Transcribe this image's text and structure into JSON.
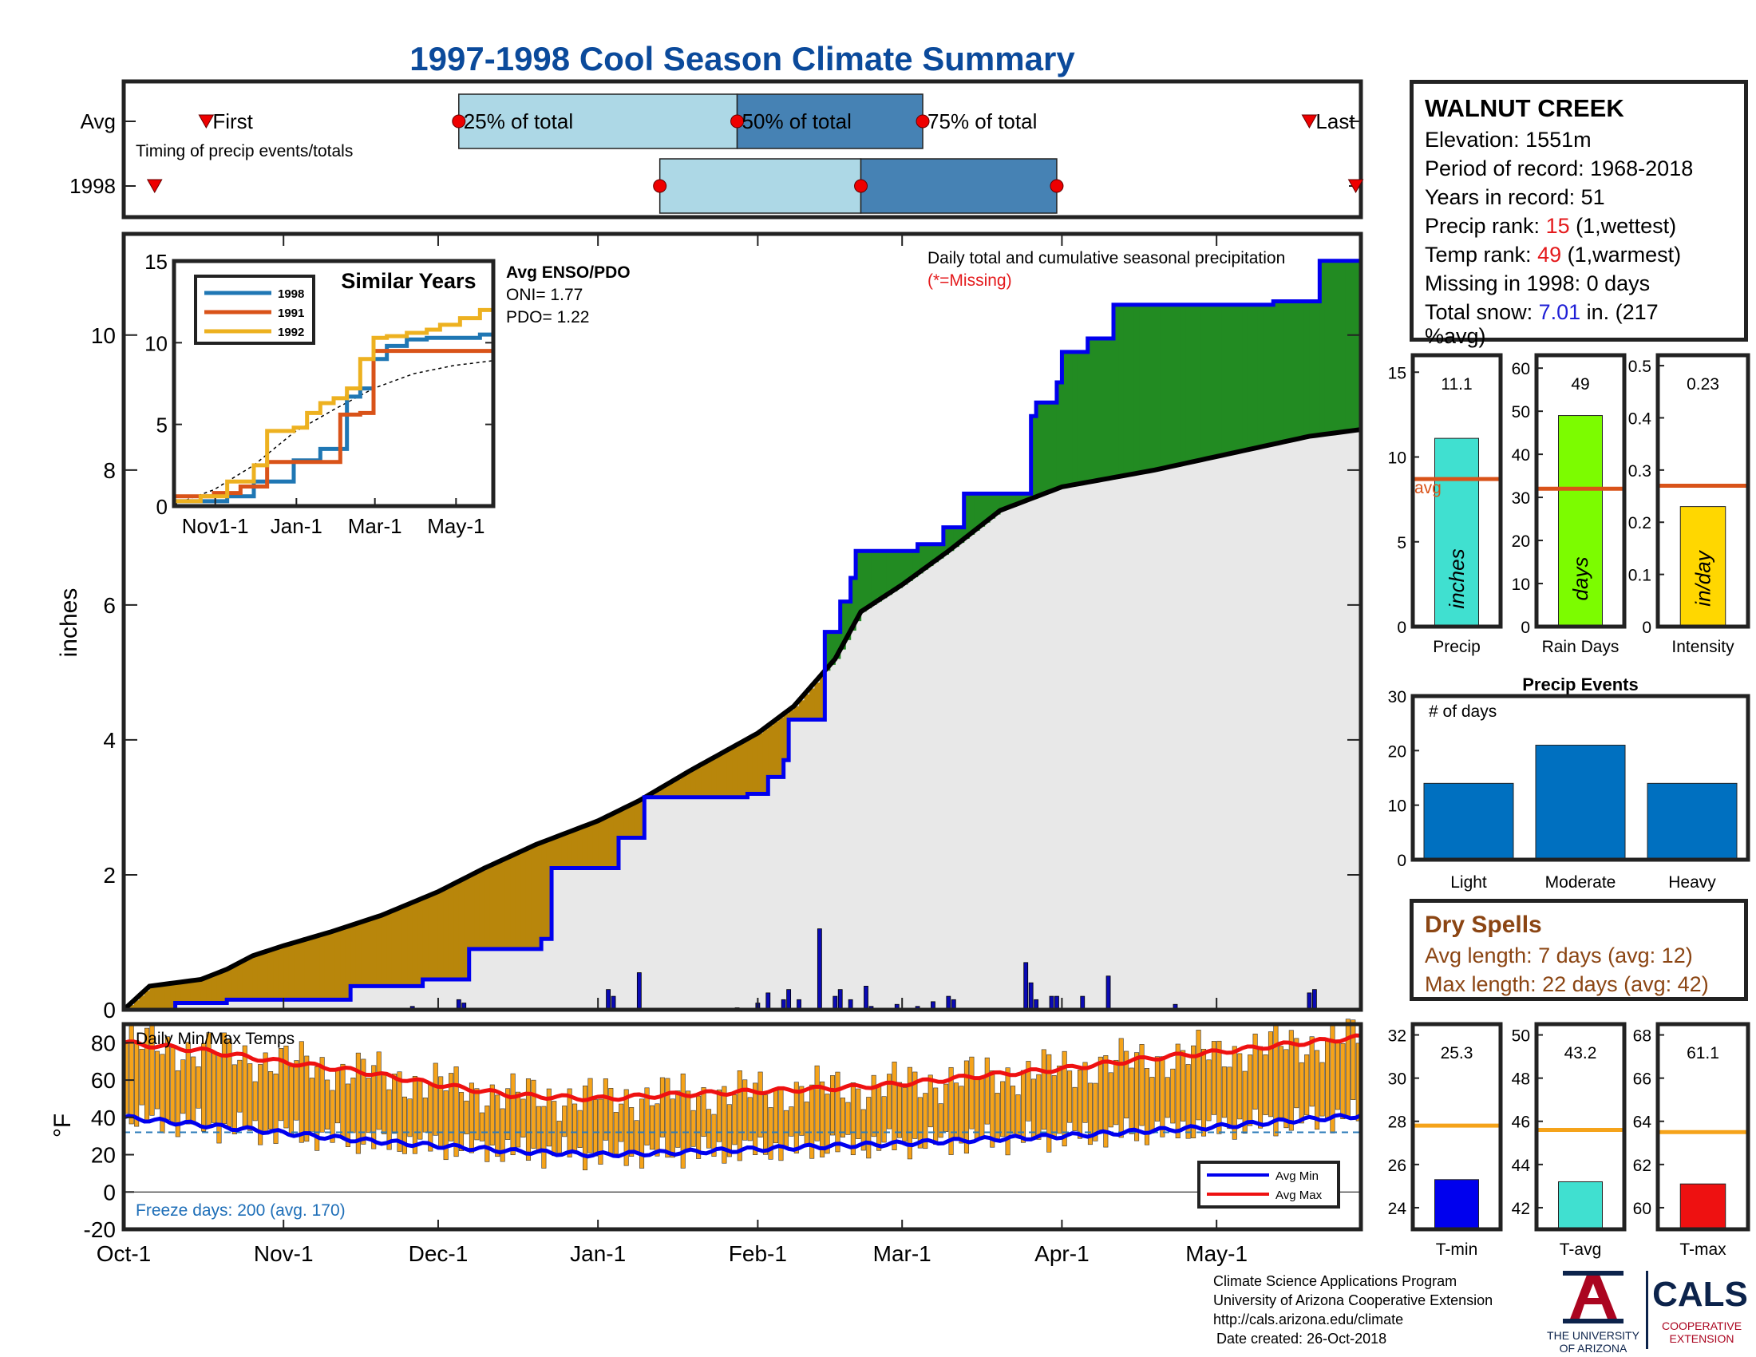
{
  "title": "1997-1998 Cool Season Climate Summary",
  "timing_panel": {
    "row_labels": [
      "Avg",
      "1998"
    ],
    "subtitle": "Timing of precip events/totals",
    "first_label": "First",
    "p25_label": "25% of total",
    "p50_label": "50% of total",
    "p75_label": "75% of total",
    "last_label": "Last"
  },
  "station": {
    "name": "WALNUT CREEK",
    "elevation": "Elevation: 1551m",
    "period": "Period of record: 1968-2018",
    "years": "Years in record: 51",
    "precip_rank_label": "Precip rank: ",
    "precip_rank_value": "15",
    "precip_rank_note": " (1,wettest)",
    "temp_rank_label": "Temp rank: ",
    "temp_rank_value": "49",
    "temp_rank_note": " (1,warmest)",
    "missing": "Missing in 1998: 0 days",
    "snow_label": "Total snow: ",
    "snow_value": "7.01",
    "snow_note": " in. (217",
    "snow_note2": "%avg)"
  },
  "main_panel": {
    "ylabel": "inches",
    "note": "Daily total and cumulative seasonal precipitation",
    "missing_note": "(*=Missing)"
  },
  "similar_years": {
    "title": "Similar Years",
    "enso_title": "Avg ENSO/PDO",
    "oni": "ONI= 1.77",
    "pdo": "PDO= 1.22"
  },
  "temp_panel": {
    "title": "Daily Min/Max Temps",
    "ylabel": "°F",
    "freeze": "Freeze days: 200 (avg. 170)"
  },
  "dry_spells": {
    "title": "Dry Spells",
    "avg": "Avg length: 7 days (avg: 12)",
    "max": "Max length: 22 days (avg: 42)"
  },
  "events_panel": {
    "title": "Precip Events",
    "subtitle": "# of days"
  },
  "footer": {
    "line1": "Climate Science Applications Program",
    "line2": "University of Arizona Cooperative Extension",
    "line3": "http://cals.arizona.edu/climate",
    "line4": "Date created: 26-Oct-2018",
    "ua_line1": "THE UNIVERSITY",
    "ua_line2": "OF ARIZONA",
    "cals": "CALS",
    "cals_line1": "COOPERATIVE",
    "cals_line2": "EXTENSION"
  },
  "colors": {
    "title": "#0b4a9b",
    "deficit": "#b8860b",
    "surplus": "#228b22",
    "cumulative": "#0000ee",
    "normal_fill": "#e8e8e8",
    "tmax": "#ee1111",
    "tmin": "#0000ee",
    "temp_bar": "#f5a31a",
    "light_blue": "#add8e6",
    "steel_blue": "#4682b4"
  },
  "chart_data": [
    {
      "id": "timing",
      "type": "bar",
      "x_days": [
        "Oct-1",
        "Nov-1",
        "Dec-1",
        "Jan-1",
        "Feb-1",
        "Mar-1",
        "Apr-1",
        "May-1"
      ],
      "avg": {
        "first": 16,
        "p25": 65,
        "p50": 119,
        "p75": 155,
        "last": 230
      },
      "y1998": {
        "first": 6,
        "p25": 104,
        "p50": 143,
        "p75": 181,
        "last": 239
      }
    },
    {
      "id": "cumulative_precip",
      "type": "area",
      "xlabel": "",
      "ylabel": "inches",
      "ylim": [
        0,
        11.5
      ],
      "x_ticks": [
        "Oct-1",
        "Nov-1",
        "Dec-1",
        "Jan-1",
        "Feb-1",
        "Mar-1",
        "Apr-1",
        "May-1"
      ],
      "x_tick_days": [
        0,
        31,
        61,
        92,
        123,
        151,
        182,
        212
      ],
      "y_ticks": [
        0,
        2,
        4,
        6,
        8,
        10
      ],
      "normal_cumulative": [
        [
          0,
          0
        ],
        [
          5,
          0.35
        ],
        [
          15,
          0.45
        ],
        [
          20,
          0.6
        ],
        [
          25,
          0.8
        ],
        [
          31,
          0.95
        ],
        [
          40,
          1.15
        ],
        [
          50,
          1.4
        ],
        [
          61,
          1.75
        ],
        [
          70,
          2.1
        ],
        [
          80,
          2.45
        ],
        [
          92,
          2.8
        ],
        [
          100,
          3.1
        ],
        [
          110,
          3.55
        ],
        [
          123,
          4.1
        ],
        [
          130,
          4.5
        ],
        [
          138,
          5.2
        ],
        [
          143,
          5.9
        ],
        [
          151,
          6.3
        ],
        [
          160,
          6.8
        ],
        [
          170,
          7.4
        ],
        [
          182,
          7.75
        ],
        [
          200,
          8.0
        ],
        [
          212,
          8.2
        ],
        [
          230,
          8.5
        ],
        [
          240,
          8.6
        ]
      ],
      "cumulative_1998": [
        [
          0,
          0
        ],
        [
          10,
          0.1
        ],
        [
          20,
          0.15
        ],
        [
          43,
          0.15
        ],
        [
          44,
          0.35
        ],
        [
          57,
          0.35
        ],
        [
          58,
          0.45
        ],
        [
          66,
          0.45
        ],
        [
          67,
          0.9
        ],
        [
          80,
          0.9
        ],
        [
          81,
          1.05
        ],
        [
          82,
          1.05
        ],
        [
          83,
          2.1
        ],
        [
          95,
          2.1
        ],
        [
          96,
          2.55
        ],
        [
          100,
          2.55
        ],
        [
          101,
          3.15
        ],
        [
          120,
          3.15
        ],
        [
          121,
          3.2
        ],
        [
          124,
          3.2
        ],
        [
          125,
          3.45
        ],
        [
          127,
          3.45
        ],
        [
          128,
          3.7
        ],
        [
          129,
          4.3
        ],
        [
          135,
          4.3
        ],
        [
          136,
          5.6
        ],
        [
          138,
          5.6
        ],
        [
          139,
          6.05
        ],
        [
          140,
          6.05
        ],
        [
          141,
          6.4
        ],
        [
          142,
          6.8
        ],
        [
          154,
          6.9
        ],
        [
          159,
          7.15
        ],
        [
          162,
          7.15
        ],
        [
          163,
          7.65
        ],
        [
          175,
          7.65
        ],
        [
          176,
          8.8
        ],
        [
          177,
          9.0
        ],
        [
          181,
          9.3
        ],
        [
          182,
          9.75
        ],
        [
          186,
          9.75
        ],
        [
          187,
          9.95
        ],
        [
          191,
          9.95
        ],
        [
          192,
          10.45
        ],
        [
          206,
          10.45
        ],
        [
          223,
          10.5
        ],
        [
          231,
          10.5
        ],
        [
          232,
          11.1
        ],
        [
          240,
          11.1
        ]
      ],
      "daily_bars": [
        [
          56,
          0.05
        ],
        [
          65,
          0.15
        ],
        [
          66,
          0.1
        ],
        [
          94,
          0.3
        ],
        [
          95,
          0.2
        ],
        [
          100,
          0.55
        ],
        [
          119,
          0.03
        ],
        [
          123,
          0.1
        ],
        [
          125,
          0.25
        ],
        [
          128,
          0.15
        ],
        [
          129,
          0.3
        ],
        [
          131,
          0.15
        ],
        [
          135,
          1.2
        ],
        [
          138,
          0.2
        ],
        [
          139,
          0.3
        ],
        [
          141,
          0.15
        ],
        [
          144,
          0.35
        ],
        [
          145,
          0.05
        ],
        [
          150,
          0.08
        ],
        [
          154,
          0.05
        ],
        [
          157,
          0.12
        ],
        [
          160,
          0.2
        ],
        [
          161,
          0.15
        ],
        [
          175,
          0.7
        ],
        [
          176,
          0.4
        ],
        [
          177,
          0.15
        ],
        [
          180,
          0.2
        ],
        [
          181,
          0.2
        ],
        [
          186,
          0.2
        ],
        [
          191,
          0.5
        ],
        [
          204,
          0.08
        ],
        [
          222,
          0.02
        ],
        [
          230,
          0.25
        ],
        [
          231,
          0.3
        ]
      ]
    },
    {
      "id": "similar_years",
      "type": "line",
      "ylim": [
        0,
        15
      ],
      "y_ticks": [
        0,
        5,
        10,
        15
      ],
      "x_ticks": [
        "Nov1-1",
        "Jan-1",
        "Mar-1",
        "May-1"
      ],
      "x_tick_days": [
        31,
        92,
        151,
        212
      ],
      "series": [
        {
          "name": "1998",
          "color": "#1f77b4",
          "values": [
            [
              0,
              0.3
            ],
            [
              40,
              0.6
            ],
            [
              60,
              1.5
            ],
            [
              90,
              2.8
            ],
            [
              110,
              3.5
            ],
            [
              130,
              6.7
            ],
            [
              140,
              7.2
            ],
            [
              150,
              9.0
            ],
            [
              160,
              9.8
            ],
            [
              175,
              10.2
            ],
            [
              190,
              10.3
            ],
            [
              230,
              10.5
            ],
            [
              240,
              11.0
            ]
          ]
        },
        {
          "name": "1991",
          "color": "#d95319",
          "values": [
            [
              0,
              0.6
            ],
            [
              30,
              0.8
            ],
            [
              50,
              1.2
            ],
            [
              70,
              2.7
            ],
            [
              90,
              2.7
            ],
            [
              120,
              2.7
            ],
            [
              125,
              5.6
            ],
            [
              140,
              5.7
            ],
            [
              150,
              9.5
            ],
            [
              160,
              9.5
            ],
            [
              240,
              9.5
            ]
          ]
        },
        {
          "name": "1992",
          "color": "#edb120",
          "values": [
            [
              0,
              0.3
            ],
            [
              20,
              0.6
            ],
            [
              40,
              1.5
            ],
            [
              60,
              2.5
            ],
            [
              70,
              4.6
            ],
            [
              90,
              4.8
            ],
            [
              100,
              5.7
            ],
            [
              110,
              6.3
            ],
            [
              120,
              6.6
            ],
            [
              130,
              7.2
            ],
            [
              140,
              9.0
            ],
            [
              150,
              10.3
            ],
            [
              160,
              10.4
            ],
            [
              175,
              10.6
            ],
            [
              190,
              10.8
            ],
            [
              200,
              11.1
            ],
            [
              215,
              11.5
            ],
            [
              230,
              12.0
            ],
            [
              240,
              12.7
            ]
          ]
        }
      ],
      "normal_curve": [
        [
          0,
          0.1
        ],
        [
          30,
          1.0
        ],
        [
          60,
          2.5
        ],
        [
          90,
          4.5
        ],
        [
          120,
          5.9
        ],
        [
          150,
          7.2
        ],
        [
          180,
          8.1
        ],
        [
          210,
          8.6
        ],
        [
          240,
          8.9
        ]
      ]
    },
    {
      "id": "temperature",
      "type": "bar",
      "ylabel": "°F",
      "ylim": [
        -20,
        90
      ],
      "y_ticks": [
        -20,
        0,
        20,
        40,
        60,
        80
      ],
      "x_ticks": [
        "Oct-1",
        "Nov-1",
        "Dec-1",
        "Jan-1",
        "Feb-1",
        "Mar-1",
        "Apr-1",
        "May-1"
      ],
      "x_tick_days": [
        0,
        31,
        61,
        92,
        123,
        151,
        182,
        212
      ],
      "freeze_line": 32,
      "avg_max": [
        [
          0,
          80
        ],
        [
          15,
          76
        ],
        [
          30,
          70
        ],
        [
          45,
          65
        ],
        [
          60,
          58
        ],
        [
          75,
          52
        ],
        [
          92,
          50
        ],
        [
          105,
          52
        ],
        [
          123,
          54
        ],
        [
          140,
          56
        ],
        [
          151,
          58
        ],
        [
          165,
          62
        ],
        [
          182,
          66
        ],
        [
          200,
          72
        ],
        [
          212,
          75
        ],
        [
          225,
          79
        ],
        [
          240,
          83
        ]
      ],
      "avg_min": [
        [
          0,
          40
        ],
        [
          15,
          36
        ],
        [
          30,
          32
        ],
        [
          45,
          28
        ],
        [
          60,
          25
        ],
        [
          75,
          22
        ],
        [
          92,
          20
        ],
        [
          105,
          21
        ],
        [
          123,
          23
        ],
        [
          140,
          25
        ],
        [
          151,
          26
        ],
        [
          165,
          28
        ],
        [
          182,
          30
        ],
        [
          200,
          33
        ],
        [
          212,
          35
        ],
        [
          225,
          38
        ],
        [
          240,
          41
        ]
      ],
      "legend": [
        "Avg Min",
        "Avg Max"
      ]
    },
    {
      "id": "seasonal_totals",
      "type": "bar",
      "panels": [
        {
          "category": "Precip",
          "value": 11.1,
          "avg": 8.7,
          "ylim": [
            0,
            16
          ],
          "y_ticks": [
            0,
            5,
            10,
            15
          ],
          "unit": "inches",
          "color": "#40e0d0",
          "value_label": "11.1",
          "avg_label": "avg"
        },
        {
          "category": "Rain Days",
          "value": 49,
          "avg": 32,
          "ylim": [
            0,
            63
          ],
          "y_ticks": [
            0,
            10,
            20,
            30,
            40,
            50,
            60
          ],
          "unit": "days",
          "color": "#7cfc00",
          "value_label": "49"
        },
        {
          "category": "Intensity",
          "value": 0.23,
          "avg": 0.27,
          "ylim": [
            0,
            0.52
          ],
          "y_ticks": [
            0,
            0.1,
            0.2,
            0.3,
            0.4,
            0.5
          ],
          "unit": "in/day",
          "color": "#ffd700",
          "value_label": "0.23"
        }
      ]
    },
    {
      "id": "precip_events",
      "type": "bar",
      "categories": [
        "Light",
        "Moderate",
        "Heavy"
      ],
      "values": [
        14,
        21,
        14
      ],
      "ylim": [
        0,
        30
      ],
      "y_ticks": [
        0,
        10,
        20,
        30
      ]
    },
    {
      "id": "temp_summary",
      "type": "bar",
      "panels": [
        {
          "category": "T-min",
          "value": 25.3,
          "avg": 27.8,
          "ylim": [
            23,
            32.5
          ],
          "y_ticks": [
            24,
            26,
            28,
            30,
            32
          ],
          "color": "#0000ee",
          "value_label": "25.3"
        },
        {
          "category": "T-avg",
          "value": 43.2,
          "avg": 45.6,
          "ylim": [
            41,
            50.5
          ],
          "y_ticks": [
            42,
            44,
            46,
            48,
            50
          ],
          "color": "#40e0d0",
          "value_label": "43.2"
        },
        {
          "category": "T-max",
          "value": 61.1,
          "avg": 63.5,
          "ylim": [
            59,
            68.5
          ],
          "y_ticks": [
            60,
            62,
            64,
            66,
            68
          ],
          "color": "#ee1111",
          "value_label": "61.1"
        }
      ]
    }
  ]
}
